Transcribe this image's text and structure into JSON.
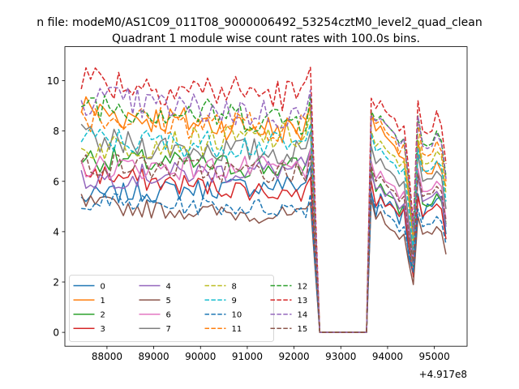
{
  "figure": {
    "suptitle": "n file: modeM0/AS1C09_011T08_9000006492_53254cztM0_level2_quad_clean",
    "title": "Quadrant 1 module wise count rates with 100.0s bins.",
    "offset_label": "+4.917e8"
  },
  "chart_data": {
    "type": "line",
    "title": "Quadrant 1 module wise count rates with 100.0s bins.",
    "xlabel": "",
    "ylabel": "",
    "x_offset": 491700000,
    "xlim": [
      87100,
      95700
    ],
    "ylim": [
      -0.55,
      11.35
    ],
    "xticks": [
      88000,
      89000,
      90000,
      91000,
      92000,
      93000,
      94000,
      95000
    ],
    "yticks": [
      0,
      2,
      4,
      6,
      8,
      10
    ],
    "grid": false,
    "legend": {
      "placement": "lower-left",
      "columns": 4
    },
    "x_start": 87450,
    "x_step": 100,
    "n_points": 79,
    "gap_start_index": 50,
    "gap_end_index": 61,
    "series": [
      {
        "name": "0",
        "color": "#1f77b4",
        "dash": "solid",
        "levels": [
          5.3,
          5.9
        ],
        "post": [
          5.6,
          4.6,
          5.5,
          5.0,
          5.2,
          4.9,
          4.3,
          5.0,
          3.0,
          2.3,
          5.5,
          4.5,
          5.1,
          5.0,
          5.3,
          5.4,
          3.9
        ]
      },
      {
        "name": "1",
        "color": "#ff7f0e",
        "dash": "solid",
        "levels": [
          9.0,
          8.0
        ],
        "post": [
          8.7,
          8.0,
          8.2,
          7.8,
          7.6,
          7.4,
          7.0,
          6.9,
          5.5,
          3.5,
          7.6,
          6.5,
          6.3,
          6.3,
          6.8,
          6.4,
          5.8
        ]
      },
      {
        "name": "2",
        "color": "#2ca02c",
        "dash": "solid",
        "levels": [
          7.0,
          6.5
        ],
        "post": [
          6.5,
          5.6,
          5.9,
          5.5,
          5.4,
          5.3,
          4.7,
          5.1,
          3.8,
          2.6,
          6.3,
          5.1,
          5.0,
          5.1,
          5.5,
          5.2,
          4.3
        ]
      },
      {
        "name": "3",
        "color": "#d62728",
        "dash": "solid",
        "levels": [
          6.5,
          5.5
        ],
        "post": [
          6.0,
          5.0,
          5.4,
          5.0,
          5.1,
          4.9,
          4.6,
          4.9,
          3.5,
          2.2,
          5.4,
          4.6,
          4.8,
          4.9,
          5.1,
          4.9,
          3.7
        ]
      },
      {
        "name": "4",
        "color": "#9467bd",
        "dash": "solid",
        "levels": [
          6.0,
          6.5
        ],
        "post": [
          6.3,
          5.7,
          5.8,
          5.4,
          5.6,
          5.3,
          4.9,
          5.1,
          3.9,
          2.7,
          6.2,
          5.2,
          5.3,
          5.4,
          5.6,
          5.3,
          4.2
        ]
      },
      {
        "name": "5",
        "color": "#8c564b",
        "dash": "solid",
        "levels": [
          5.2,
          4.6
        ],
        "post": [
          5.3,
          4.5,
          4.8,
          4.3,
          4.1,
          4.0,
          3.7,
          3.9,
          2.8,
          1.9,
          4.6,
          3.9,
          4.0,
          3.9,
          4.2,
          4.0,
          3.1
        ]
      },
      {
        "name": "6",
        "color": "#e377c2",
        "dash": "solid",
        "levels": [
          6.6,
          6.5
        ],
        "post": [
          6.8,
          6.1,
          6.4,
          6.0,
          5.9,
          5.8,
          5.3,
          5.6,
          4.2,
          2.9,
          6.5,
          5.6,
          5.6,
          5.7,
          6.0,
          5.8,
          4.5
        ]
      },
      {
        "name": "7",
        "color": "#7f7f7f",
        "dash": "solid",
        "levels": [
          7.7,
          7.1
        ],
        "post": [
          7.4,
          6.7,
          6.9,
          6.5,
          6.4,
          6.2,
          5.8,
          6.0,
          4.5,
          3.1,
          7.1,
          6.0,
          6.1,
          6.1,
          6.4,
          6.2,
          4.9
        ]
      },
      {
        "name": "8",
        "color": "#bcbd22",
        "dash": "dashed",
        "levels": [
          7.2,
          7.8
        ],
        "post": [
          8.0,
          7.4,
          7.6,
          7.3,
          7.1,
          7.0,
          6.6,
          6.8,
          5.3,
          3.5,
          7.8,
          6.7,
          6.7,
          6.8,
          7.2,
          7.0,
          5.5
        ]
      },
      {
        "name": "9",
        "color": "#17becf",
        "dash": "dashed",
        "levels": [
          7.7,
          7.4
        ],
        "post": [
          7.9,
          7.2,
          7.3,
          7.0,
          6.8,
          6.7,
          6.3,
          6.5,
          5.0,
          3.3,
          7.3,
          6.4,
          6.4,
          6.5,
          6.8,
          6.6,
          5.2
        ]
      },
      {
        "name": "10",
        "color": "#1f77b4",
        "dash": "dashed",
        "levels": [
          5.3,
          4.9
        ],
        "post": [
          5.5,
          4.9,
          5.1,
          4.7,
          4.6,
          4.4,
          4.0,
          4.2,
          3.2,
          2.4,
          4.9,
          4.2,
          4.3,
          4.3,
          4.6,
          4.4,
          3.5
        ]
      },
      {
        "name": "11",
        "color": "#ff7f0e",
        "dash": "dashed",
        "levels": [
          8.7,
          8.1
        ],
        "post": [
          8.7,
          8.3,
          8.4,
          8.0,
          7.8,
          7.7,
          7.1,
          7.5,
          5.9,
          3.9,
          8.3,
          7.1,
          7.0,
          7.1,
          7.6,
          7.2,
          6.0
        ]
      },
      {
        "name": "12",
        "color": "#2ca02c",
        "dash": "dashed",
        "levels": [
          9.3,
          8.4
        ],
        "post": [
          8.8,
          8.4,
          8.6,
          8.3,
          8.1,
          7.9,
          7.5,
          7.7,
          6.0,
          4.0,
          8.6,
          7.5,
          7.4,
          7.5,
          8.0,
          7.6,
          6.2
        ]
      },
      {
        "name": "13",
        "color": "#d62728",
        "dash": "dashed",
        "levels": [
          10.2,
          9.4
        ],
        "post": [
          9.3,
          8.9,
          9.2,
          8.8,
          8.6,
          8.5,
          8.0,
          8.2,
          6.5,
          4.3,
          9.2,
          8.0,
          7.9,
          8.0,
          8.8,
          8.2,
          6.7
        ]
      },
      {
        "name": "14",
        "color": "#9467bd",
        "dash": "dashed",
        "levels": [
          9.4,
          8.6
        ],
        "post": [
          8.6,
          8.4,
          8.5,
          8.3,
          8.1,
          7.9,
          7.4,
          7.7,
          6.1,
          4.0,
          8.6,
          7.4,
          7.3,
          7.4,
          7.9,
          7.5,
          6.1
        ]
      },
      {
        "name": "15",
        "color": "#8c564b",
        "dash": "dashed",
        "levels": [
          6.8,
          6.3
        ],
        "post": [
          6.6,
          6.0,
          6.2,
          5.9,
          5.7,
          5.6,
          5.2,
          5.4,
          4.0,
          2.8,
          6.3,
          5.4,
          5.5,
          5.5,
          5.8,
          5.6,
          4.4
        ]
      }
    ]
  }
}
